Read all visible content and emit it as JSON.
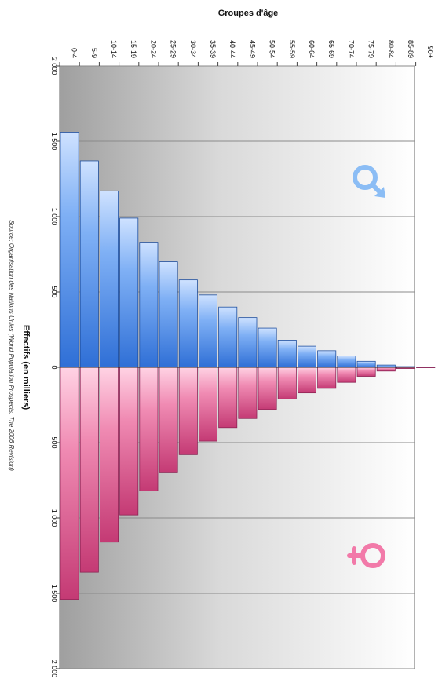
{
  "chart_data": {
    "type": "bar",
    "orientation": "horizontal-pyramid",
    "title": "",
    "xlabel": "Groupes d'âge",
    "ylabel": "Effectifs (en milliers)",
    "source": "Source: Organisation des Nations Unies (World Population Prospects: The 2006 Revision)",
    "categories": [
      "0-4",
      "5-9",
      "10-14",
      "15-19",
      "20-24",
      "25-29",
      "30-34",
      "35-39",
      "40-44",
      "45-49",
      "50-54",
      "55-59",
      "60-64",
      "65-69",
      "70-74",
      "75-79",
      "80-84",
      "85-89",
      "90+"
    ],
    "value_ticks": [
      "2 000",
      "1 500",
      "1 000",
      "500",
      "0",
      "500",
      "1 000",
      "1 500",
      "2 000"
    ],
    "ylim": [
      -2000,
      2000
    ],
    "series": [
      {
        "symbol": "♂",
        "color": "#5b9bef",
        "values": [
          1560,
          1370,
          1170,
          990,
          830,
          700,
          580,
          480,
          400,
          330,
          260,
          180,
          140,
          110,
          75,
          40,
          15,
          5,
          1
        ]
      },
      {
        "symbol": "♀",
        "color": "#e8759e",
        "values": [
          1540,
          1360,
          1160,
          980,
          820,
          700,
          580,
          490,
          400,
          340,
          280,
          210,
          170,
          140,
          100,
          60,
          25,
          8,
          2
        ]
      }
    ]
  }
}
